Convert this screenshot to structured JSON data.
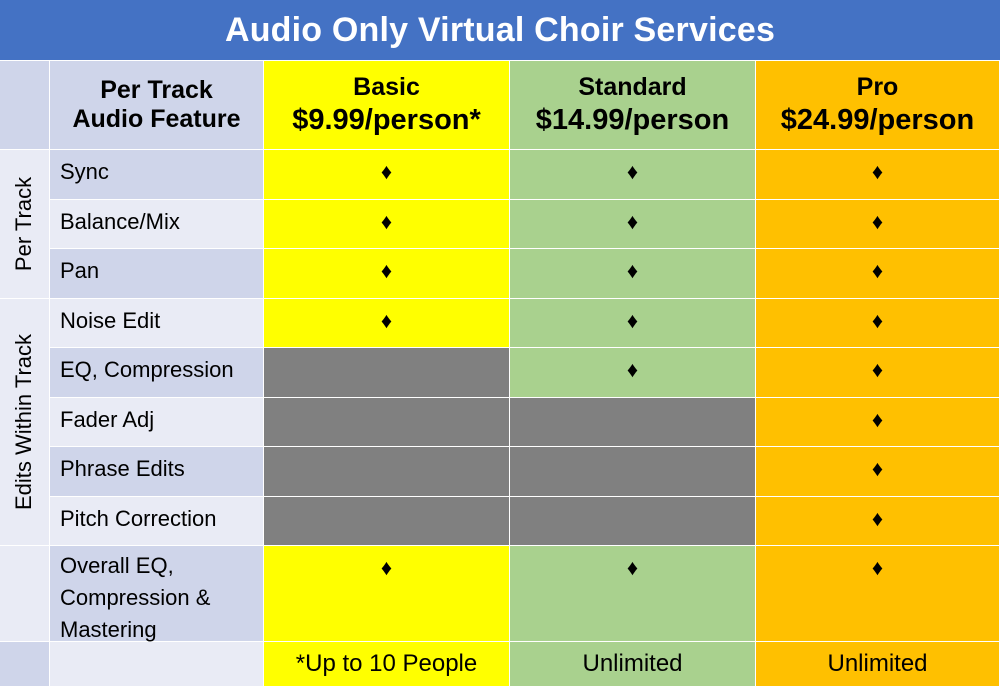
{
  "title": "Audio Only Virtual Choir Services",
  "header": {
    "feature_line1": "Per Track",
    "feature_line2": "Audio Feature",
    "tiers": [
      {
        "name": "Basic",
        "price": "$9.99/person*"
      },
      {
        "name": "Standard",
        "price": "$14.99/person"
      },
      {
        "name": "Pro",
        "price": "$24.99/person"
      }
    ]
  },
  "groups": {
    "per_track": "Per Track",
    "edits_within_track": "Edits Within Track"
  },
  "marker": "♦",
  "rows": [
    {
      "feature": "Sync",
      "basic": true,
      "standard": true,
      "pro": true
    },
    {
      "feature": "Balance/Mix",
      "basic": true,
      "standard": true,
      "pro": true
    },
    {
      "feature": "Pan",
      "basic": true,
      "standard": true,
      "pro": true
    },
    {
      "feature": "Noise Edit",
      "basic": true,
      "standard": true,
      "pro": true
    },
    {
      "feature": "EQ, Compression",
      "basic": false,
      "standard": true,
      "pro": true
    },
    {
      "feature": "Fader Adj",
      "basic": false,
      "standard": false,
      "pro": true
    },
    {
      "feature": "Phrase Edits",
      "basic": false,
      "standard": false,
      "pro": true
    },
    {
      "feature": "Pitch Correction",
      "basic": false,
      "standard": false,
      "pro": true
    },
    {
      "feature_line1": "Overall EQ,",
      "feature_line2": "Compression &",
      "feature_line3": "Mastering",
      "basic": true,
      "standard": true,
      "pro": true
    }
  ],
  "footer": {
    "basic": "*Up to 10 People",
    "standard": "Unlimited",
    "pro": "Unlimited"
  },
  "colors": {
    "title_bar": "#4472c4",
    "basic": "#ffff00",
    "standard": "#a9d18e",
    "pro": "#ffc000",
    "unavailable": "#808080"
  }
}
